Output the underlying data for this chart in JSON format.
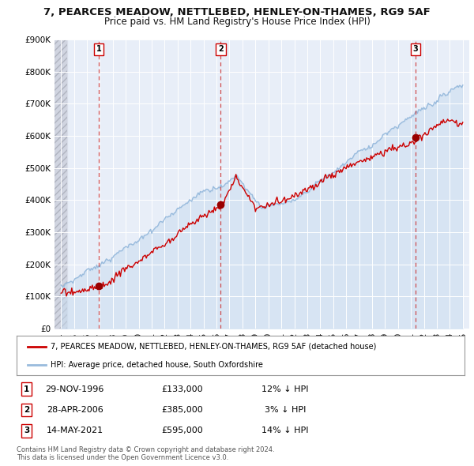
{
  "title": "7, PEARCES MEADOW, NETTLEBED, HENLEY-ON-THAMES, RG9 5AF",
  "subtitle": "Price paid vs. HM Land Registry's House Price Index (HPI)",
  "xlim": [
    1993.5,
    2025.5
  ],
  "ylim": [
    0,
    900000
  ],
  "yticks": [
    0,
    100000,
    200000,
    300000,
    400000,
    500000,
    600000,
    700000,
    800000,
    900000
  ],
  "ytick_labels": [
    "£0",
    "£100K",
    "£200K",
    "£300K",
    "£400K",
    "£500K",
    "£600K",
    "£700K",
    "£800K",
    "£900K"
  ],
  "xtick_years": [
    1994,
    1995,
    1996,
    1997,
    1998,
    1999,
    2000,
    2001,
    2002,
    2003,
    2004,
    2005,
    2006,
    2007,
    2008,
    2009,
    2010,
    2011,
    2012,
    2013,
    2014,
    2015,
    2016,
    2017,
    2018,
    2019,
    2020,
    2021,
    2022,
    2023,
    2024,
    2025
  ],
  "price_paid_color": "#cc0000",
  "hpi_color": "#99bbdd",
  "hpi_fill_color": "#c8dcf0",
  "marker_color": "#990000",
  "vline_color": "#cc3333",
  "background_color": "#ffffff",
  "plot_bg_color": "#e8eef8",
  "grid_color": "#ffffff",
  "hatch_color": "#c8ccd8",
  "transaction_markers": [
    {
      "year": 1996.91,
      "value": 133000,
      "label": "1"
    },
    {
      "year": 2006.33,
      "value": 385000,
      "label": "2"
    },
    {
      "year": 2021.37,
      "value": 595000,
      "label": "3"
    }
  ],
  "legend_entries": [
    {
      "label": "7, PEARCES MEADOW, NETTLEBED, HENLEY-ON-THAMES, RG9 5AF (detached house)",
      "color": "#cc0000"
    },
    {
      "label": "HPI: Average price, detached house, South Oxfordshire",
      "color": "#99bbdd"
    }
  ],
  "table_rows": [
    {
      "num": "1",
      "date": "29-NOV-1996",
      "price": "£133,000",
      "hpi": "12% ↓ HPI"
    },
    {
      "num": "2",
      "date": "28-APR-2006",
      "price": "£385,000",
      "hpi": "3% ↓ HPI"
    },
    {
      "num": "3",
      "date": "14-MAY-2021",
      "price": "£595,000",
      "hpi": "14% ↓ HPI"
    }
  ],
  "footer": "Contains HM Land Registry data © Crown copyright and database right 2024.\nThis data is licensed under the Open Government Licence v3.0.",
  "title_fontsize": 9.5,
  "subtitle_fontsize": 8.5,
  "axis_fontsize": 7.5,
  "legend_fontsize": 7.0,
  "table_fontsize": 8.0,
  "footer_fontsize": 6.0
}
